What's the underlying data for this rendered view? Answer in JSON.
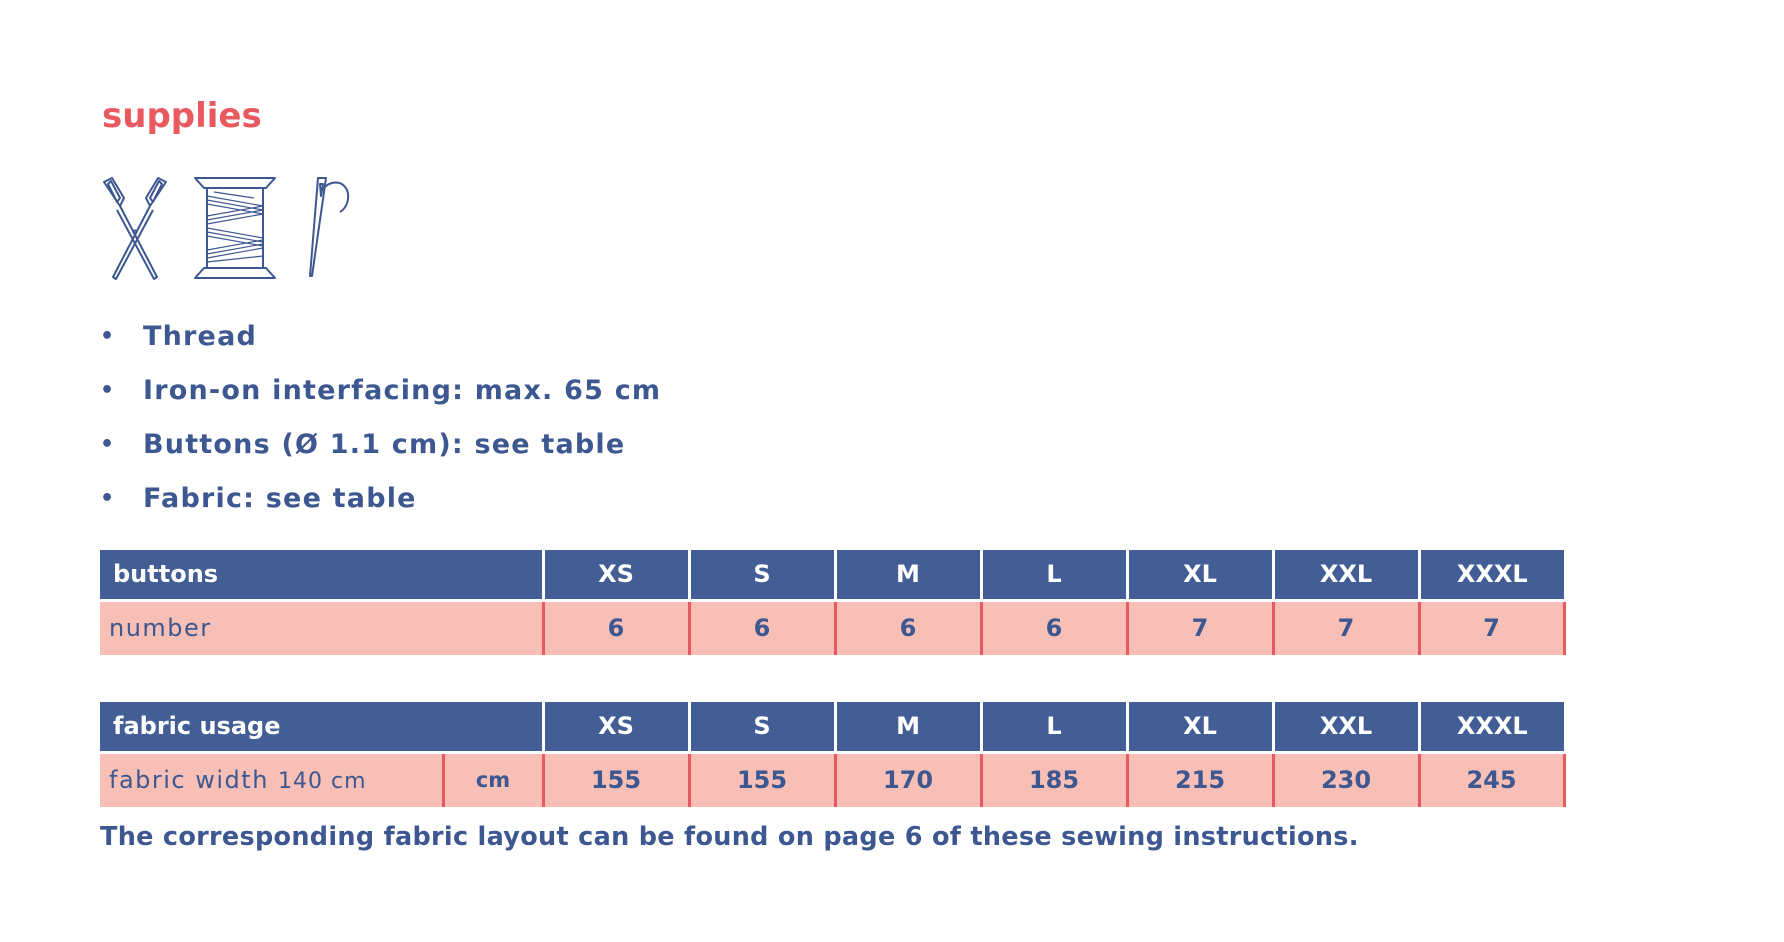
{
  "title": "supplies",
  "icons": [
    "scissors-icon",
    "thread-spool-icon",
    "needle-icon"
  ],
  "colors": {
    "accent": "#e85a5f",
    "text": "#3d5790",
    "header_bg": "#435e94",
    "row_bg": "#f7bfb6"
  },
  "supplies": [
    "Thread",
    "Iron-on interfacing: max. 65 cm",
    "Buttons (Ø 1.1 cm): see table",
    "Fabric: see table"
  ],
  "bullet": "•",
  "buttons_table": {
    "header_label": "buttons",
    "sizes": [
      "XS",
      "S",
      "M",
      "L",
      "XL",
      "XXL",
      "XXXL"
    ],
    "row_label": "number",
    "values": [
      "6",
      "6",
      "6",
      "6",
      "7",
      "7",
      "7"
    ]
  },
  "fabric_table": {
    "header_label": "fabric usage",
    "sizes": [
      "XS",
      "S",
      "M",
      "L",
      "XL",
      "XXL",
      "XXXL"
    ],
    "row_label_main": "fabric width ",
    "row_label_width": "140 cm",
    "unit": "cm",
    "values": [
      "155",
      "155",
      "170",
      "185",
      "215",
      "230",
      "245"
    ]
  },
  "note": "The corresponding fabric layout can be found on page 6 of these sewing instructions."
}
